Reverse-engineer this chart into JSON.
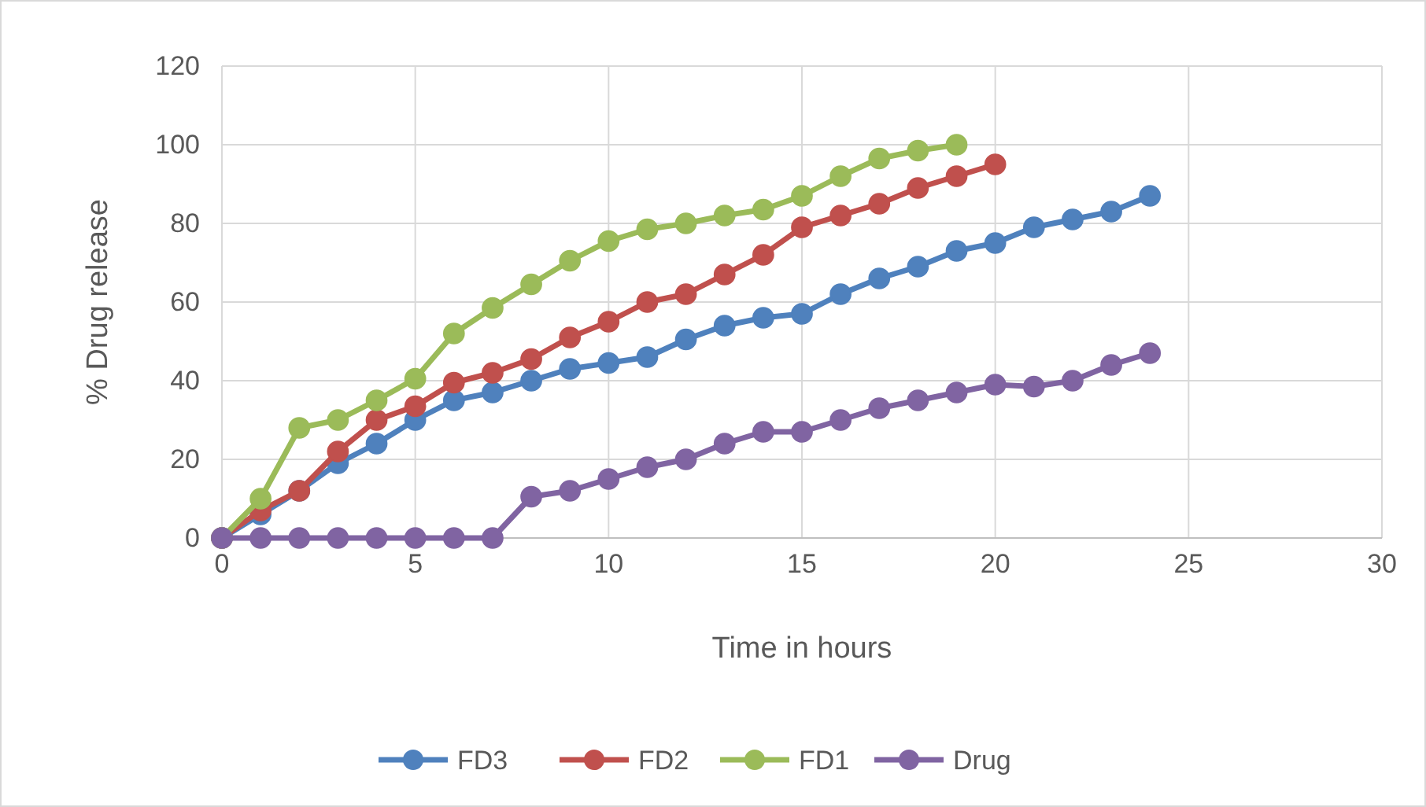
{
  "chart_data": {
    "type": "line",
    "xlabel": "Time in hours",
    "ylabel": "% Drug release",
    "xlim": [
      0,
      30
    ],
    "xticks": [
      0,
      5,
      10,
      15,
      20,
      25,
      30
    ],
    "ylim": [
      0,
      120
    ],
    "yticks": [
      0,
      20,
      40,
      60,
      80,
      100,
      120
    ],
    "grid": true,
    "legend": "bottom",
    "marker": "circle",
    "series": [
      {
        "name": "FD3",
        "color": "#4f81bd",
        "x": [
          0,
          1,
          2,
          3,
          4,
          5,
          6,
          7,
          8,
          9,
          10,
          11,
          12,
          13,
          14,
          15,
          16,
          17,
          18,
          19,
          20,
          21,
          22,
          23,
          24
        ],
        "values": [
          0,
          6,
          12,
          19,
          24,
          30,
          35,
          37,
          40,
          43,
          44.5,
          46,
          50.5,
          54,
          56,
          57,
          62,
          66,
          69,
          73,
          75,
          79,
          81,
          83,
          87
        ]
      },
      {
        "name": "FD2",
        "color": "#c0504d",
        "x": [
          0,
          1,
          2,
          3,
          4,
          5,
          6,
          7,
          8,
          9,
          10,
          11,
          12,
          13,
          14,
          15,
          16,
          17,
          18,
          19,
          20
        ],
        "values": [
          0,
          7,
          12,
          22,
          30,
          33.5,
          39.5,
          42,
          45.5,
          51,
          55,
          60,
          62,
          67,
          72,
          79,
          82,
          85,
          89,
          92,
          95
        ]
      },
      {
        "name": "FD1",
        "color": "#9bbb59",
        "x": [
          0,
          1,
          2,
          3,
          4,
          5,
          6,
          7,
          8,
          9,
          10,
          11,
          12,
          13,
          14,
          15,
          16,
          17,
          18,
          19
        ],
        "values": [
          0,
          10,
          28,
          30,
          35,
          40.5,
          52,
          58.5,
          64.5,
          70.5,
          75.5,
          78.5,
          80,
          82,
          83.5,
          87,
          92,
          96.5,
          98.5,
          100
        ]
      },
      {
        "name": "Drug",
        "color": "#8064a2",
        "x": [
          0,
          1,
          2,
          3,
          4,
          5,
          6,
          7,
          8,
          9,
          10,
          11,
          12,
          13,
          14,
          15,
          16,
          17,
          18,
          19,
          20,
          21,
          22,
          23,
          24
        ],
        "values": [
          0,
          0,
          0,
          0,
          0,
          0,
          0,
          0,
          10.5,
          12,
          15,
          18,
          20,
          24,
          27,
          27,
          30,
          33,
          35,
          37,
          39,
          38.5,
          40,
          44,
          47
        ]
      }
    ]
  }
}
